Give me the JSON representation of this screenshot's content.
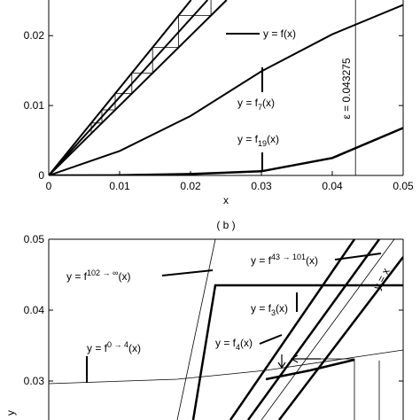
{
  "chart_data": [
    {
      "type": "line",
      "x_label": "x",
      "xlim": [
        0,
        0.05
      ],
      "ylim": [
        0,
        0.0251
      ],
      "xticks": [
        0,
        0.01,
        0.02,
        0.03,
        0.04,
        0.05
      ],
      "yticks": [
        0,
        0.01,
        0.02
      ],
      "series": [
        {
          "color": "#000",
          "width": 2,
          "x": [
            0,
            0.0251
          ],
          "values": [
            0,
            0.0251
          ]
        },
        {
          "color": "#000",
          "width": 2,
          "x": [
            0,
            0.02008
          ],
          "values": [
            0,
            0.0251
          ]
        },
        {
          "color": "#000",
          "width": 2,
          "x": [
            0,
            0.02241
          ],
          "values": [
            0,
            0.0251
          ]
        },
        {
          "color": "#000",
          "width": 0.8,
          "x": [
            0.006,
            0.006,
            0.0075,
            0.0075,
            0.00938,
            0.00938,
            0.01172,
            0.01172,
            0.01465,
            0.01465,
            0.01831,
            0.01831,
            0.02289,
            0.02289
          ],
          "values": [
            0.006,
            0.0075,
            0.0075,
            0.00938,
            0.00938,
            0.01172,
            0.01172,
            0.01465,
            0.01465,
            0.01831,
            0.01831,
            0.02289,
            0.02289,
            0.0251
          ]
        },
        {
          "color": "#000",
          "width": 2,
          "x": [
            0,
            0.01,
            0.02,
            0.03,
            0.04,
            0.05
          ],
          "values": [
            0,
            0.0035,
            0.0085,
            0.0149,
            0.0202,
            0.0244
          ]
        },
        {
          "color": "#000",
          "width": 2.5,
          "x": [
            0,
            0.01,
            0.02,
            0.03,
            0.04,
            0.05
          ],
          "values": [
            0,
            3e-05,
            0.0002,
            0.0006,
            0.0025,
            0.0068
          ]
        }
      ],
      "vline": {
        "value": 0.043275,
        "label": "ε = 0.043275"
      },
      "annotations": [
        {
          "text": "y = f(x)"
        },
        {
          "text": "y = f",
          "sub": "7",
          "tail": "(x)"
        },
        {
          "text": "y = f",
          "sub": "19",
          "tail": "(x)"
        }
      ]
    },
    {
      "type": "line",
      "caption": "( b )",
      "y_label": "y",
      "xlim": [
        0.025,
        0.05
      ],
      "ylim": [
        0.0245,
        0.05
      ],
      "yticks": [
        0.03,
        0.04,
        0.05
      ],
      "series": [
        {
          "color": "#000",
          "width": 0.8,
          "x": [
            0.034063,
            0.03675
          ],
          "values": [
            0.0245,
            0.05
          ]
        },
        {
          "color": "#000",
          "width": 2.5,
          "x": [
            0.035188,
            0.03675,
            0.05
          ],
          "values": [
            0.0245,
            0.0435,
            0.0435
          ]
        },
        {
          "color": "#000",
          "width": 2.5,
          "x": [
            0.037813,
            0.046563
          ],
          "values": [
            0.0245,
            0.05
          ]
        },
        {
          "color": "#000",
          "width": 2.5,
          "x": [
            0.039063,
            0.048313
          ],
          "values": [
            0.0245,
            0.05
          ]
        },
        {
          "color": "#000",
          "width": 0.8,
          "x": [
            0.04,
            0.049375
          ],
          "values": [
            0.0245,
            0.05
          ]
        },
        {
          "color": "#000",
          "width": 2.5,
          "x": [
            0.04125,
            0.05
          ],
          "values": [
            0.0245,
            0.0475
          ]
        },
        {
          "color": "#000",
          "width": 0.8,
          "x": [
            0.025,
            0.034063,
            0.040313,
            0.05
          ],
          "values": [
            0.029625,
            0.03025,
            0.0315,
            0.034375
          ]
        },
        {
          "color": "#000",
          "width": 2.5,
          "x": [
            0.040313,
            0.043438,
            0.046563
          ],
          "values": [
            0.03025,
            0.0315,
            0.033
          ]
        },
        {
          "color": "#000",
          "width": 0.8,
          "x": [
            0.042188,
            0.046563,
            0.046563
          ],
          "values": [
            0.033125,
            0.033125,
            0.0245
          ]
        },
        {
          "color": "#000",
          "width": 0.8,
          "x": [
            0.048313,
            0.048313
          ],
          "values": [
            0.0329,
            0.0245
          ]
        }
      ],
      "annotations": [
        {
          "text": "y = f",
          "sup": "43 → 101",
          "tail": "(x)"
        },
        {
          "text": "y = f",
          "sup": "102 → ∞",
          "tail": "(x)"
        },
        {
          "text": "y = f",
          "sub": "3",
          "tail": "(x)"
        },
        {
          "text": "y = f",
          "sub": "4",
          "tail": "(x)"
        },
        {
          "text": "y = f",
          "sup": "0 → 4",
          "tail": "(x)"
        },
        {
          "text": "y = x"
        }
      ]
    }
  ]
}
